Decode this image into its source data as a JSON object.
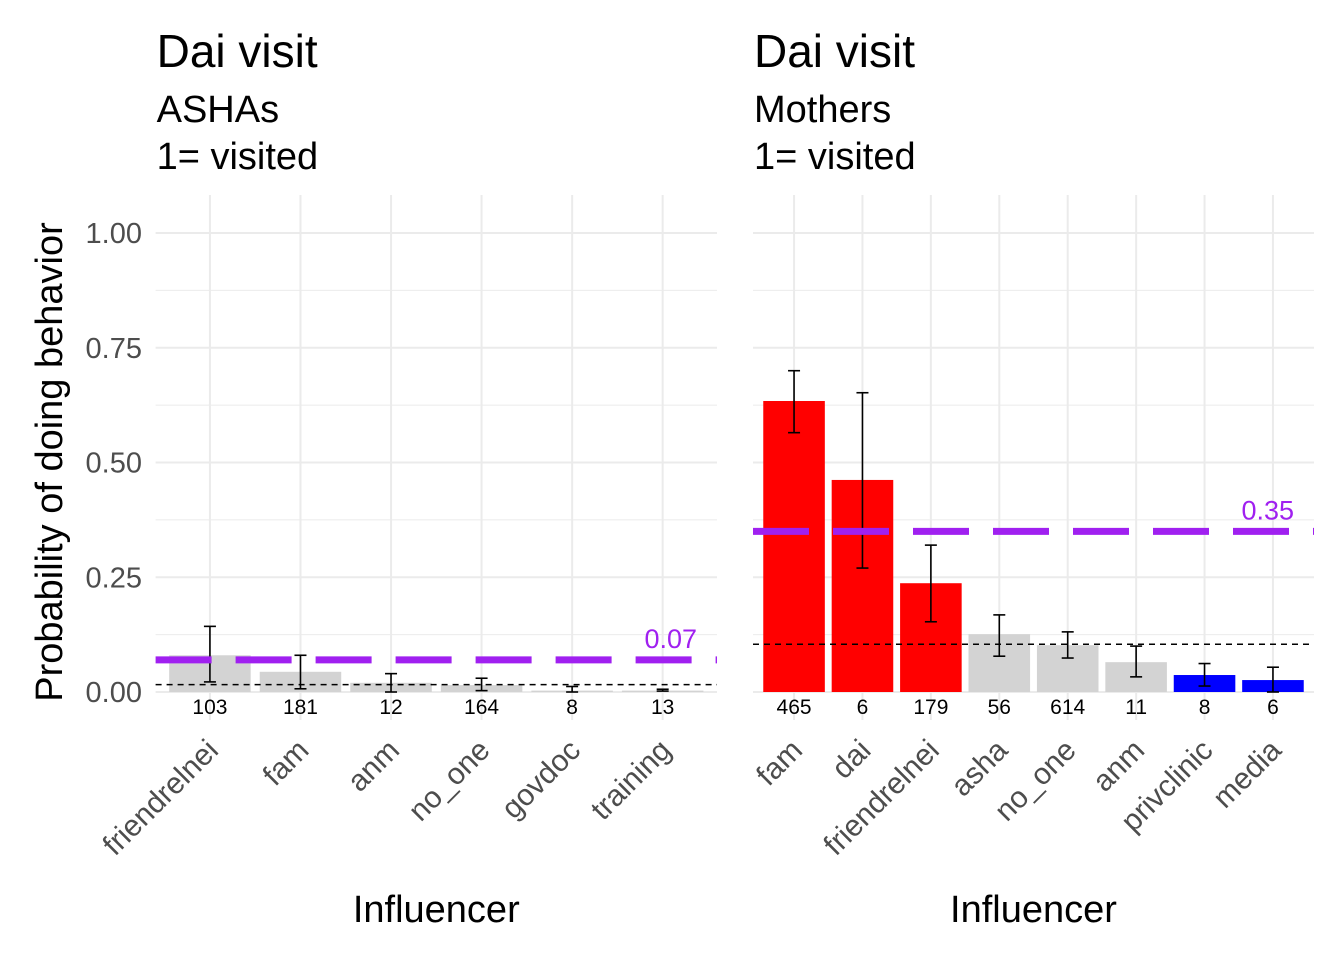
{
  "chart_data": [
    {
      "type": "bar",
      "title": "Dai visit",
      "subtitle_lines": [
        "ASHAs",
        "1= visited"
      ],
      "xlabel": "Influencer",
      "ylabel": "Probability of doing behavior",
      "ylim": [
        0,
        1
      ],
      "yticks": [
        "0.00",
        "0.25",
        "0.50",
        "0.75",
        "1.00"
      ],
      "categories": [
        "friendrelnei",
        "fam",
        "anm",
        "no_one",
        "govdoc",
        "training"
      ],
      "values": [
        0.08,
        0.044,
        0.02,
        0.015,
        0.003,
        0.003
      ],
      "error_low": [
        0.022,
        0.007,
        0.0,
        0.003,
        0.0,
        0.002
      ],
      "error_high": [
        0.143,
        0.08,
        0.04,
        0.03,
        0.012,
        0.006
      ],
      "counts": [
        "103",
        "181",
        "12",
        "164",
        "8",
        "13"
      ],
      "bar_colors": [
        "#d3d3d3",
        "#d3d3d3",
        "#d3d3d3",
        "#d3d3d3",
        "#d3d3d3",
        "#d3d3d3"
      ],
      "reference_line": 0.07,
      "reference_label": "0.07",
      "baseline_dashed": 0.016,
      "grid": true
    },
    {
      "type": "bar",
      "title": "Dai visit",
      "subtitle_lines": [
        "Mothers",
        "1= visited"
      ],
      "xlabel": "Influencer",
      "ylabel": "",
      "ylim": [
        0,
        1
      ],
      "categories": [
        "fam",
        "dai",
        "friendrelnei",
        "asha",
        "no_one",
        "anm",
        "privclinic",
        "media"
      ],
      "values": [
        0.634,
        0.462,
        0.237,
        0.126,
        0.102,
        0.065,
        0.037,
        0.026
      ],
      "error_low": [
        0.565,
        0.27,
        0.153,
        0.078,
        0.074,
        0.033,
        0.013,
        0.0
      ],
      "error_high": [
        0.7,
        0.652,
        0.32,
        0.168,
        0.131,
        0.1,
        0.062,
        0.054
      ],
      "counts": [
        "465",
        "6",
        "179",
        "56",
        "614",
        "11",
        "8",
        "6"
      ],
      "bar_colors": [
        "#ff0000",
        "#ff0000",
        "#ff0000",
        "#d3d3d3",
        "#d3d3d3",
        "#d3d3d3",
        "#0000ff",
        "#0000ff"
      ],
      "reference_line": 0.35,
      "reference_label": "0.35",
      "baseline_dashed": 0.104,
      "grid": true
    }
  ],
  "colors": {
    "reference": "#a020f0",
    "grid": "#ebebeb",
    "text": "#4d4d4d"
  }
}
